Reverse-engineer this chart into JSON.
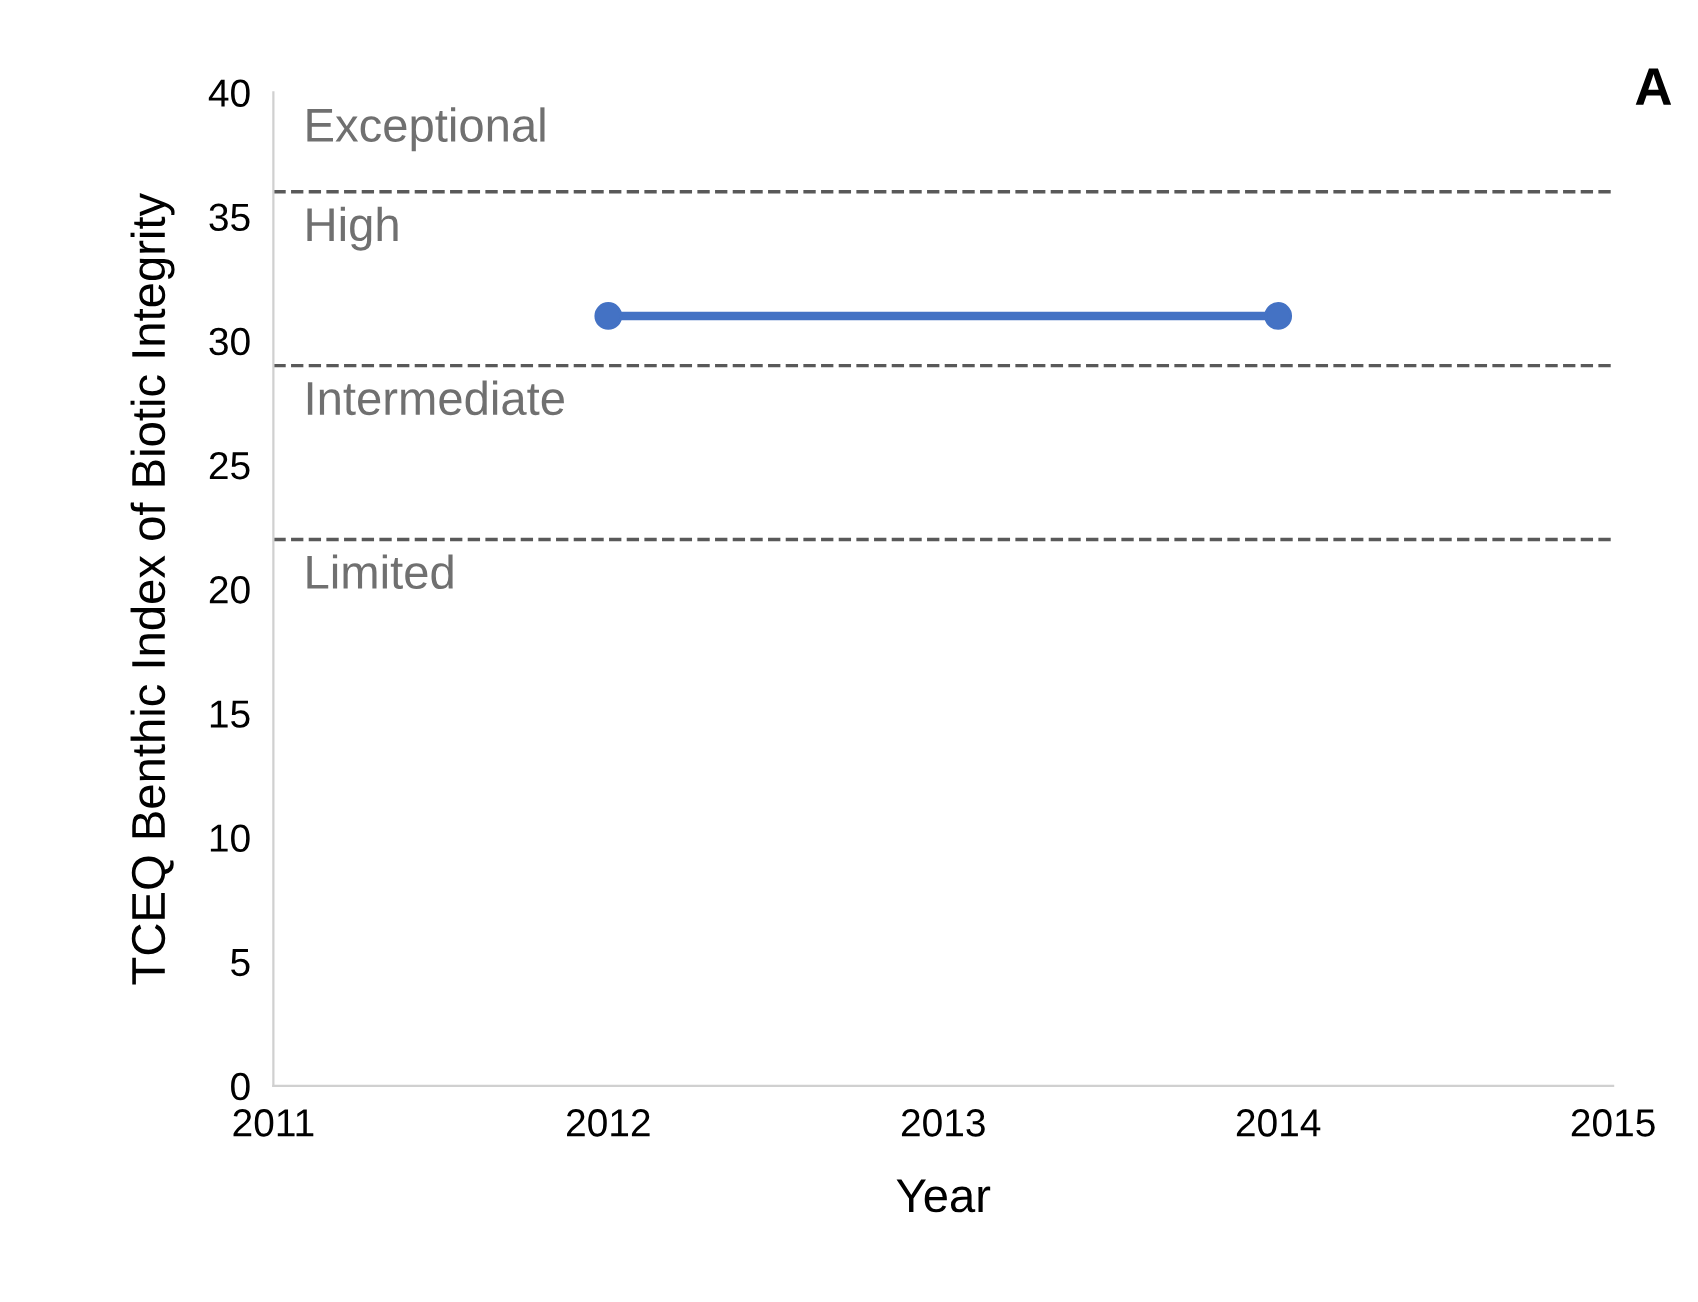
{
  "chart_data": {
    "type": "line",
    "xlabel": "Year",
    "ylabel": "TCEQ Benthic Index of Biotic Integrity",
    "x": [
      2012,
      2014
    ],
    "series": [
      {
        "color": "#4472c4",
        "values": [
          31,
          31
        ]
      }
    ],
    "marker": "circle",
    "line_style": "solid",
    "grid": false,
    "legend": false,
    "xlim": [
      2011,
      2015
    ],
    "xticks": [
      2011,
      2012,
      2013,
      2014,
      2015
    ],
    "ylim": [
      0,
      40
    ],
    "yticks": [
      0,
      5,
      10,
      15,
      20,
      25,
      30,
      35,
      40
    ],
    "ref_lines": [
      {
        "axis": "y",
        "value": 36,
        "color": "#595959",
        "line_style": "dashed"
      },
      {
        "axis": "y",
        "value": 29,
        "color": "#595959",
        "line_style": "dashed"
      },
      {
        "axis": "y",
        "value": 22,
        "color": "#595959",
        "line_style": "dashed"
      }
    ],
    "annotations": [
      "Exceptional",
      "High",
      "Intermediate",
      "Limited",
      "A"
    ]
  }
}
